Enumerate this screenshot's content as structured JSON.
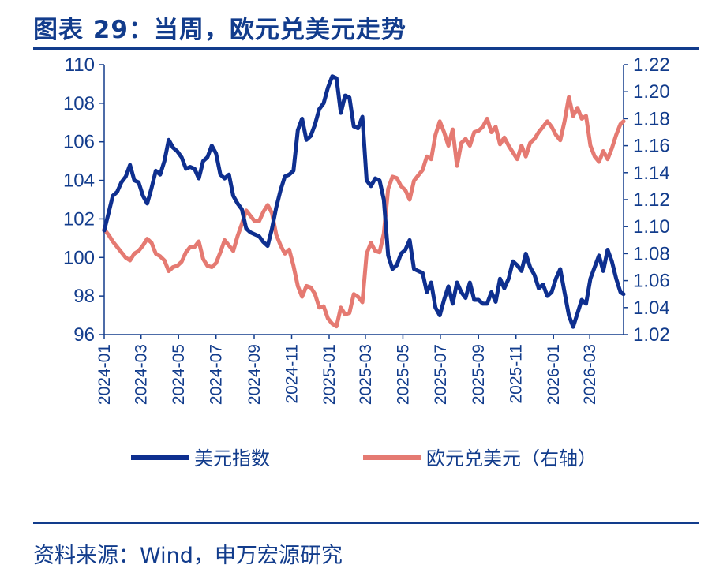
{
  "title": "图表 29：当周，欧元兑美元走势",
  "source": "资料来源：Wind，申万宏源研究",
  "chart_data": {
    "type": "line",
    "title": "图表 29：当周，欧元兑美元走势",
    "left_axis": {
      "min": 96,
      "max": 110,
      "ticks": [
        "96",
        "98",
        "100",
        "102",
        "104",
        "106",
        "108",
        "110"
      ]
    },
    "right_axis": {
      "min": 1.02,
      "max": 1.22,
      "ticks": [
        "1.02",
        "1.04",
        "1.06",
        "1.08",
        "1.10",
        "1.12",
        "1.14",
        "1.16",
        "1.18",
        "1.20",
        "1.22"
      ]
    },
    "x_ticks": [
      "2024-01",
      "2024-03",
      "2024-05",
      "2024-07",
      "2024-09",
      "2024-11",
      "2025-01",
      "2025-03",
      "2025-05",
      "2025-07",
      "2025-09",
      "2025-11",
      "2026-01",
      "2026-03"
    ],
    "x_range": [
      "2024-01-01",
      "2026-04-25"
    ],
    "grid": false,
    "legend_position": "bottom",
    "series": [
      {
        "name": "美元指数",
        "axis": "left",
        "color": "#0e2f8f",
        "points": [
          [
            "2024-01-01",
            101.4
          ],
          [
            "2024-01-08",
            102.3
          ],
          [
            "2024-01-15",
            103.2
          ],
          [
            "2024-01-22",
            103.4
          ],
          [
            "2024-01-29",
            103.9
          ],
          [
            "2024-02-05",
            104.2
          ],
          [
            "2024-02-12",
            104.8
          ],
          [
            "2024-02-19",
            104.0
          ],
          [
            "2024-02-26",
            103.9
          ],
          [
            "2024-03-04",
            103.2
          ],
          [
            "2024-03-11",
            102.8
          ],
          [
            "2024-03-18",
            103.6
          ],
          [
            "2024-03-25",
            104.5
          ],
          [
            "2024-04-01",
            104.3
          ],
          [
            "2024-04-08",
            105.0
          ],
          [
            "2024-04-15",
            106.1
          ],
          [
            "2024-04-22",
            105.7
          ],
          [
            "2024-04-29",
            105.5
          ],
          [
            "2024-05-06",
            105.2
          ],
          [
            "2024-05-13",
            104.6
          ],
          [
            "2024-05-20",
            104.7
          ],
          [
            "2024-05-27",
            104.6
          ],
          [
            "2024-06-03",
            104.1
          ],
          [
            "2024-06-10",
            105.0
          ],
          [
            "2024-06-17",
            105.2
          ],
          [
            "2024-06-24",
            105.8
          ],
          [
            "2024-07-01",
            105.4
          ],
          [
            "2024-07-08",
            104.3
          ],
          [
            "2024-07-15",
            104.1
          ],
          [
            "2024-07-22",
            104.3
          ],
          [
            "2024-07-29",
            103.2
          ],
          [
            "2024-08-05",
            102.8
          ],
          [
            "2024-08-12",
            102.5
          ],
          [
            "2024-08-19",
            101.5
          ],
          [
            "2024-08-26",
            101.3
          ],
          [
            "2024-09-02",
            101.2
          ],
          [
            "2024-09-09",
            101.1
          ],
          [
            "2024-09-16",
            100.8
          ],
          [
            "2024-09-23",
            100.6
          ],
          [
            "2024-09-30",
            101.5
          ],
          [
            "2024-10-07",
            102.6
          ],
          [
            "2024-10-14",
            103.5
          ],
          [
            "2024-10-21",
            104.2
          ],
          [
            "2024-10-28",
            104.3
          ],
          [
            "2024-11-04",
            104.5
          ],
          [
            "2024-11-11",
            106.6
          ],
          [
            "2024-11-18",
            107.2
          ],
          [
            "2024-11-25",
            106.1
          ],
          [
            "2024-12-02",
            106.3
          ],
          [
            "2024-12-09",
            106.9
          ],
          [
            "2024-12-16",
            107.7
          ],
          [
            "2024-12-23",
            108.0
          ],
          [
            "2024-12-30",
            108.8
          ],
          [
            "2025-01-06",
            109.4
          ],
          [
            "2025-01-13",
            109.3
          ],
          [
            "2025-01-20",
            107.5
          ],
          [
            "2025-01-27",
            108.4
          ],
          [
            "2025-02-03",
            108.3
          ],
          [
            "2025-02-10",
            106.8
          ],
          [
            "2025-02-17",
            106.7
          ],
          [
            "2025-02-24",
            107.3
          ],
          [
            "2025-03-03",
            104.0
          ],
          [
            "2025-03-10",
            103.7
          ],
          [
            "2025-03-17",
            104.1
          ],
          [
            "2025-03-24",
            104.0
          ],
          [
            "2025-03-31",
            103.0
          ],
          [
            "2025-04-07",
            100.1
          ],
          [
            "2025-04-14",
            99.4
          ],
          [
            "2025-04-21",
            99.6
          ],
          [
            "2025-04-28",
            100.2
          ],
          [
            "2025-05-05",
            100.4
          ],
          [
            "2025-05-12",
            100.9
          ],
          [
            "2025-05-19",
            99.4
          ],
          [
            "2025-05-26",
            99.3
          ],
          [
            "2025-06-02",
            99.2
          ],
          [
            "2025-06-09",
            98.2
          ],
          [
            "2025-06-16",
            98.7
          ],
          [
            "2025-06-23",
            97.4
          ],
          [
            "2025-06-30",
            97.0
          ],
          [
            "2025-07-07",
            97.8
          ],
          [
            "2025-07-14",
            98.5
          ],
          [
            "2025-07-21",
            97.6
          ],
          [
            "2025-07-28",
            98.7
          ],
          [
            "2025-08-04",
            98.2
          ],
          [
            "2025-08-11",
            97.9
          ],
          [
            "2025-08-18",
            98.7
          ],
          [
            "2025-08-25",
            97.8
          ],
          [
            "2025-09-01",
            97.8
          ],
          [
            "2025-09-08",
            97.6
          ],
          [
            "2025-09-15",
            97.6
          ],
          [
            "2025-09-22",
            98.2
          ],
          [
            "2025-09-29",
            97.7
          ],
          [
            "2025-10-06",
            98.9
          ],
          [
            "2025-10-13",
            98.4
          ],
          [
            "2025-10-20",
            98.9
          ],
          [
            "2025-10-27",
            99.8
          ],
          [
            "2025-11-03",
            99.6
          ],
          [
            "2025-11-10",
            99.3
          ],
          [
            "2025-11-17",
            100.2
          ],
          [
            "2025-11-24",
            99.5
          ],
          [
            "2025-12-01",
            99.1
          ],
          [
            "2025-12-08",
            98.4
          ],
          [
            "2025-12-15",
            98.6
          ],
          [
            "2025-12-22",
            98.0
          ],
          [
            "2025-12-29",
            98.2
          ],
          [
            "2026-01-05",
            98.9
          ],
          [
            "2026-01-12",
            99.4
          ],
          [
            "2026-01-19",
            98.2
          ],
          [
            "2026-01-26",
            97.0
          ],
          [
            "2026-02-02",
            96.4
          ],
          [
            "2026-02-09",
            97.1
          ],
          [
            "2026-02-16",
            97.8
          ],
          [
            "2026-02-23",
            97.6
          ],
          [
            "2026-03-02",
            98.9
          ],
          [
            "2026-03-09",
            99.5
          ],
          [
            "2026-03-16",
            100.1
          ],
          [
            "2026-03-23",
            99.3
          ],
          [
            "2026-03-30",
            100.4
          ],
          [
            "2026-04-06",
            99.8
          ],
          [
            "2026-04-13",
            98.9
          ],
          [
            "2026-04-20",
            98.2
          ],
          [
            "2026-04-25",
            98.1
          ]
        ]
      },
      {
        "name": "欧元兑美元（右轴）",
        "axis": "right",
        "color": "#e57a72",
        "points": [
          [
            "2024-01-01",
            1.098
          ],
          [
            "2024-01-08",
            1.094
          ],
          [
            "2024-01-15",
            1.089
          ],
          [
            "2024-01-22",
            1.085
          ],
          [
            "2024-01-29",
            1.081
          ],
          [
            "2024-02-05",
            1.077
          ],
          [
            "2024-02-12",
            1.075
          ],
          [
            "2024-02-19",
            1.08
          ],
          [
            "2024-02-26",
            1.082
          ],
          [
            "2024-03-04",
            1.086
          ],
          [
            "2024-03-11",
            1.091
          ],
          [
            "2024-03-18",
            1.088
          ],
          [
            "2024-03-25",
            1.08
          ],
          [
            "2024-04-01",
            1.078
          ],
          [
            "2024-04-08",
            1.075
          ],
          [
            "2024-04-15",
            1.067
          ],
          [
            "2024-04-22",
            1.07
          ],
          [
            "2024-04-29",
            1.071
          ],
          [
            "2024-05-06",
            1.074
          ],
          [
            "2024-05-13",
            1.081
          ],
          [
            "2024-05-20",
            1.085
          ],
          [
            "2024-05-27",
            1.085
          ],
          [
            "2024-06-03",
            1.089
          ],
          [
            "2024-06-10",
            1.076
          ],
          [
            "2024-06-17",
            1.071
          ],
          [
            "2024-06-24",
            1.07
          ],
          [
            "2024-07-01",
            1.073
          ],
          [
            "2024-07-08",
            1.081
          ],
          [
            "2024-07-15",
            1.09
          ],
          [
            "2024-07-22",
            1.086
          ],
          [
            "2024-07-29",
            1.082
          ],
          [
            "2024-08-05",
            1.093
          ],
          [
            "2024-08-12",
            1.102
          ],
          [
            "2024-08-19",
            1.112
          ],
          [
            "2024-08-26",
            1.108
          ],
          [
            "2024-09-02",
            1.104
          ],
          [
            "2024-09-09",
            1.104
          ],
          [
            "2024-09-16",
            1.111
          ],
          [
            "2024-09-23",
            1.116
          ],
          [
            "2024-09-30",
            1.11
          ],
          [
            "2024-10-07",
            1.094
          ],
          [
            "2024-10-14",
            1.086
          ],
          [
            "2024-10-21",
            1.08
          ],
          [
            "2024-10-28",
            1.083
          ],
          [
            "2024-11-04",
            1.071
          ],
          [
            "2024-11-11",
            1.056
          ],
          [
            "2024-11-18",
            1.048
          ],
          [
            "2024-11-25",
            1.056
          ],
          [
            "2024-12-02",
            1.055
          ],
          [
            "2024-12-09",
            1.05
          ],
          [
            "2024-12-16",
            1.04
          ],
          [
            "2024-12-23",
            1.041
          ],
          [
            "2024-12-30",
            1.032
          ],
          [
            "2025-01-06",
            1.028
          ],
          [
            "2025-01-13",
            1.026
          ],
          [
            "2025-01-20",
            1.04
          ],
          [
            "2025-01-27",
            1.035
          ],
          [
            "2025-02-03",
            1.036
          ],
          [
            "2025-02-10",
            1.05
          ],
          [
            "2025-02-17",
            1.048
          ],
          [
            "2025-02-24",
            1.044
          ],
          [
            "2025-03-03",
            1.08
          ],
          [
            "2025-03-10",
            1.088
          ],
          [
            "2025-03-17",
            1.082
          ],
          [
            "2025-03-24",
            1.081
          ],
          [
            "2025-03-31",
            1.095
          ],
          [
            "2025-04-07",
            1.128
          ],
          [
            "2025-04-14",
            1.137
          ],
          [
            "2025-04-21",
            1.136
          ],
          [
            "2025-04-28",
            1.13
          ],
          [
            "2025-05-05",
            1.127
          ],
          [
            "2025-05-12",
            1.12
          ],
          [
            "2025-05-19",
            1.134
          ],
          [
            "2025-05-26",
            1.138
          ],
          [
            "2025-06-02",
            1.142
          ],
          [
            "2025-06-09",
            1.152
          ],
          [
            "2025-06-16",
            1.15
          ],
          [
            "2025-06-23",
            1.168
          ],
          [
            "2025-06-30",
            1.178
          ],
          [
            "2025-07-07",
            1.17
          ],
          [
            "2025-07-14",
            1.16
          ],
          [
            "2025-07-21",
            1.172
          ],
          [
            "2025-07-28",
            1.145
          ],
          [
            "2025-08-04",
            1.162
          ],
          [
            "2025-08-11",
            1.165
          ],
          [
            "2025-08-18",
            1.16
          ],
          [
            "2025-08-25",
            1.17
          ],
          [
            "2025-09-01",
            1.171
          ],
          [
            "2025-09-08",
            1.174
          ],
          [
            "2025-09-15",
            1.18
          ],
          [
            "2025-09-22",
            1.17
          ],
          [
            "2025-09-29",
            1.174
          ],
          [
            "2025-10-06",
            1.161
          ],
          [
            "2025-10-13",
            1.166
          ],
          [
            "2025-10-20",
            1.16
          ],
          [
            "2025-10-27",
            1.155
          ],
          [
            "2025-11-03",
            1.15
          ],
          [
            "2025-11-10",
            1.16
          ],
          [
            "2025-11-17",
            1.152
          ],
          [
            "2025-11-24",
            1.162
          ],
          [
            "2025-12-01",
            1.165
          ],
          [
            "2025-12-08",
            1.17
          ],
          [
            "2025-12-15",
            1.174
          ],
          [
            "2025-12-22",
            1.178
          ],
          [
            "2025-12-29",
            1.174
          ],
          [
            "2026-01-05",
            1.168
          ],
          [
            "2026-01-12",
            1.164
          ],
          [
            "2026-01-19",
            1.178
          ],
          [
            "2026-01-26",
            1.196
          ],
          [
            "2026-02-02",
            1.182
          ],
          [
            "2026-02-09",
            1.188
          ],
          [
            "2026-02-16",
            1.18
          ],
          [
            "2026-02-23",
            1.182
          ],
          [
            "2026-03-02",
            1.16
          ],
          [
            "2026-03-09",
            1.152
          ],
          [
            "2026-03-16",
            1.148
          ],
          [
            "2026-03-23",
            1.156
          ],
          [
            "2026-03-30",
            1.15
          ],
          [
            "2026-04-06",
            1.158
          ],
          [
            "2026-04-13",
            1.168
          ],
          [
            "2026-04-20",
            1.176
          ],
          [
            "2026-04-25",
            1.178
          ]
        ]
      }
    ]
  }
}
